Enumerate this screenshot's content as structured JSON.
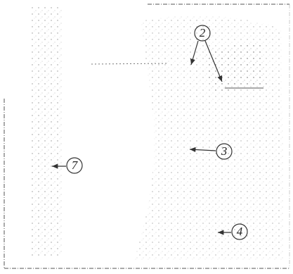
{
  "callouts": [
    {
      "label": "2"
    },
    {
      "label": "3"
    },
    {
      "label": "4"
    },
    {
      "label": "7"
    }
  ]
}
